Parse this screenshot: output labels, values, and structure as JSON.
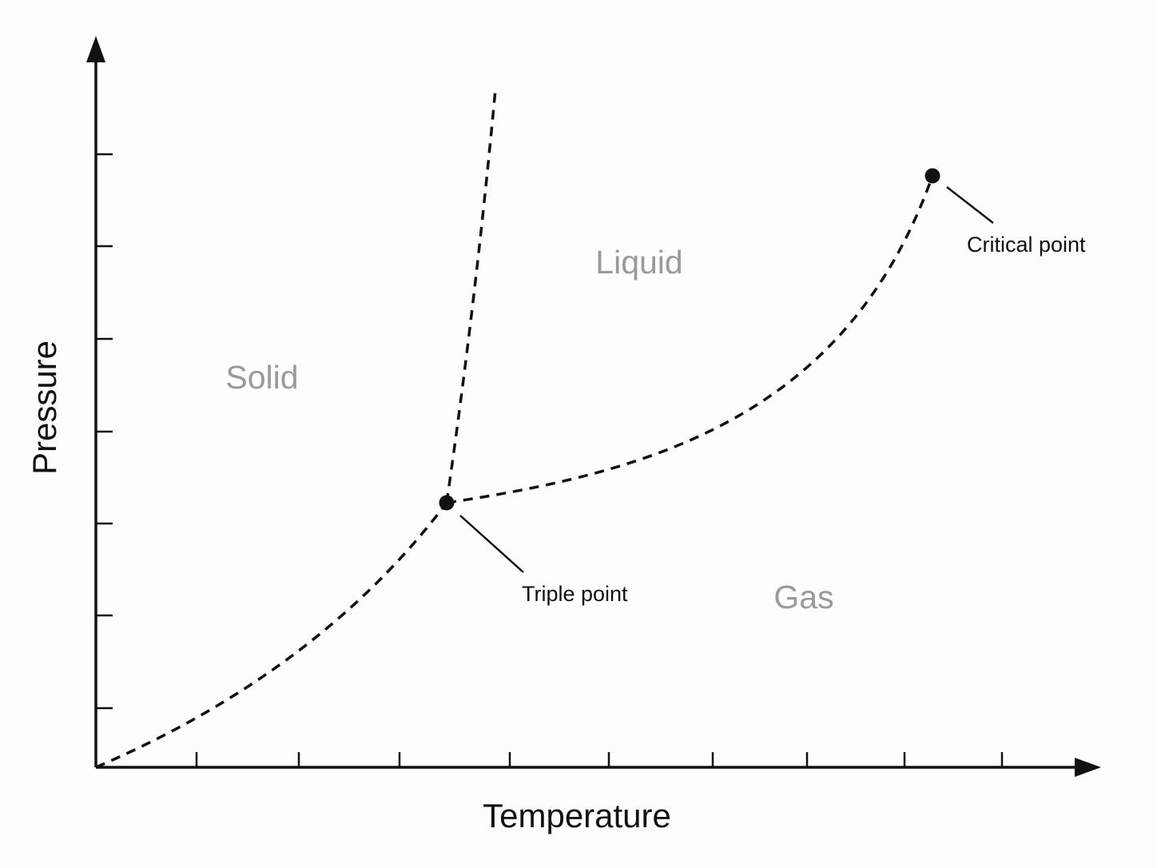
{
  "axes": {
    "y_label": "Pressure",
    "x_label": "Temperature"
  },
  "regions": {
    "solid": "Solid",
    "liquid": "Liquid",
    "gas": "Gas"
  },
  "annotations": {
    "triple_point": "Triple point",
    "critical_point": "Critical point"
  }
}
